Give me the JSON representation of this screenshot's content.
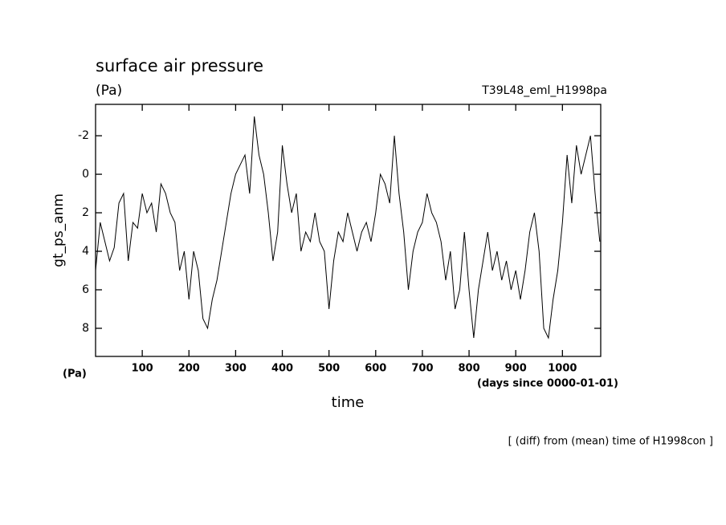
{
  "chart_data": {
    "type": "line",
    "title": "surface air pressure",
    "subtitle": "(Pa)",
    "run_label": "T39L48_eml_H1998pa",
    "ylabel": "gt_ps_anm",
    "xunit_left": "(Pa)",
    "xunit": "(days since 0000-01-01)",
    "xlabel": "time",
    "footnote": "[ (diff) from (mean) time of H1998con ]",
    "xlim": [
      0,
      1082
    ],
    "ylim": [
      9.46,
      -3.63
    ],
    "xticks": [
      100,
      200,
      300,
      400,
      500,
      600,
      700,
      800,
      900,
      1000
    ],
    "yticks": [
      -2,
      0,
      2,
      4,
      6,
      8
    ],
    "x": [
      0,
      10,
      20,
      30,
      40,
      50,
      60,
      70,
      80,
      90,
      100,
      110,
      120,
      130,
      140,
      150,
      160,
      170,
      180,
      190,
      200,
      210,
      220,
      230,
      240,
      250,
      260,
      270,
      280,
      290,
      300,
      310,
      320,
      330,
      340,
      350,
      360,
      370,
      380,
      390,
      400,
      410,
      420,
      430,
      440,
      450,
      460,
      470,
      480,
      490,
      500,
      510,
      520,
      530,
      540,
      550,
      560,
      570,
      580,
      590,
      600,
      610,
      620,
      630,
      640,
      650,
      660,
      670,
      680,
      690,
      700,
      710,
      720,
      730,
      740,
      750,
      760,
      770,
      780,
      790,
      800,
      810,
      820,
      830,
      840,
      850,
      860,
      870,
      880,
      890,
      900,
      910,
      920,
      930,
      940,
      950,
      960,
      970,
      980,
      990,
      1000,
      1010,
      1020,
      1030,
      1040,
      1050,
      1060,
      1070,
      1080
    ],
    "series": [
      {
        "color": "#000000",
        "values": [
          5,
          2.5,
          3.5,
          4.5,
          3.8,
          1.5,
          1,
          4.5,
          2.5,
          2.8,
          1,
          2,
          1.5,
          3,
          0.5,
          1,
          2,
          2.5,
          5,
          4,
          6.5,
          4,
          5,
          7.5,
          8,
          6.5,
          5.5,
          4,
          2.5,
          1,
          0,
          -0.5,
          -1,
          1,
          -3,
          -1,
          0,
          2,
          4.5,
          3,
          -1.5,
          0.5,
          2,
          1,
          4,
          3,
          3.5,
          2,
          3.5,
          4,
          7,
          4.5,
          3,
          3.5,
          2,
          3,
          4,
          3,
          2.5,
          3.5,
          2,
          0,
          0.5,
          1.5,
          -2,
          1,
          3,
          6,
          4,
          3,
          2.5,
          1,
          2,
          2.5,
          3.5,
          5.5,
          4,
          7,
          6,
          3,
          6,
          8.5,
          6,
          4.5,
          3,
          5,
          4,
          5.5,
          4.5,
          6,
          5,
          6.5,
          5,
          3,
          2,
          4,
          8,
          8.5,
          6.5,
          5,
          2.5,
          -1,
          1.5,
          -1.5,
          0,
          -1,
          -2,
          1,
          3.5
        ]
      }
    ]
  }
}
